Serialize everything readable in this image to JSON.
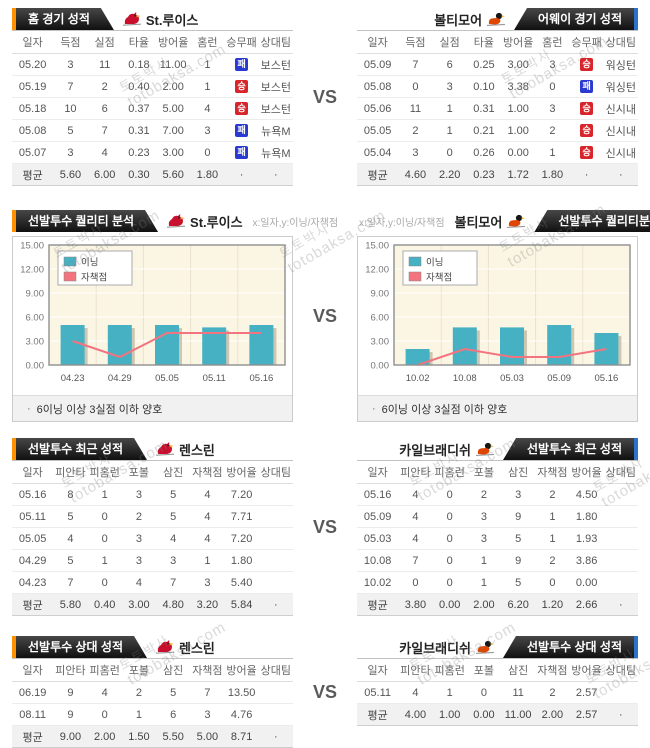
{
  "vs_label": "VS",
  "watermark": {
    "line1": "토토박사",
    "line2": "totobaksa.com"
  },
  "colors": {
    "tab_black": "#1d1d1d",
    "accent_orange": "#ff9000",
    "accent_blue": "#2e72c8",
    "badge_win_red": "#d8252b",
    "badge_loss_blue": "#2a3ad0",
    "bar_teal": "#46b1c2",
    "line_pink": "#f3747f",
    "plot_cream": "#fbf6e4"
  },
  "sections": [
    {
      "left": {
        "tab": "홈 경기 성적",
        "team": "St.루이스",
        "team_icon": "cardinal-icon",
        "table": {
          "columns": [
            "일자",
            "득점",
            "실점",
            "타율",
            "방어율",
            "홈런",
            "승무패",
            "상대팀"
          ],
          "rows": [
            [
              "05.20",
              "3",
              "11",
              "0.18",
              "11.00",
              "1",
              "패",
              "보스턴"
            ],
            [
              "05.19",
              "7",
              "2",
              "0.40",
              "2.00",
              "1",
              "승",
              "보스턴"
            ],
            [
              "05.18",
              "10",
              "6",
              "0.37",
              "5.00",
              "4",
              "승",
              "보스턴"
            ],
            [
              "05.08",
              "5",
              "7",
              "0.31",
              "7.00",
              "3",
              "패",
              "뉴욕M"
            ],
            [
              "05.07",
              "3",
              "4",
              "0.23",
              "3.00",
              "0",
              "패",
              "뉴욕M"
            ]
          ],
          "avg": [
            "평균",
            "5.60",
            "6.00",
            "0.30",
            "5.60",
            "1.80",
            "·",
            "·"
          ]
        }
      },
      "right": {
        "tab": "어웨이 경기 성적",
        "team": "볼티모어",
        "team_icon": "oriole-icon",
        "table": {
          "columns": [
            "일자",
            "득점",
            "실점",
            "타율",
            "방어율",
            "홈런",
            "승무패",
            "상대팀"
          ],
          "rows": [
            [
              "05.09",
              "7",
              "6",
              "0.25",
              "3.00",
              "3",
              "승",
              "워싱턴"
            ],
            [
              "05.08",
              "0",
              "3",
              "0.10",
              "3.38",
              "0",
              "패",
              "워싱턴"
            ],
            [
              "05.06",
              "11",
              "1",
              "0.31",
              "1.00",
              "3",
              "승",
              "신시내"
            ],
            [
              "05.05",
              "2",
              "1",
              "0.21",
              "1.00",
              "2",
              "승",
              "신시내"
            ],
            [
              "05.04",
              "3",
              "0",
              "0.26",
              "0.00",
              "1",
              "승",
              "신시내"
            ]
          ],
          "avg": [
            "평균",
            "4.60",
            "2.20",
            "0.23",
            "1.72",
            "1.80",
            "·",
            "·"
          ]
        }
      }
    },
    {
      "left": {
        "tab": "선발투수 퀄리티 분석",
        "team": "St.루이스",
        "team_icon": "cardinal-icon",
        "axis_note": "x:일자,y:이닝/자책점",
        "note_bullet": "·",
        "note": "6이닝 이상 3실점 이하 양호"
      },
      "right": {
        "tab": "선발투수 퀄리티분석",
        "team": "볼티모어",
        "team_icon": "oriole-icon",
        "axis_note": "x:일자,y:이닝/자책점",
        "note_bullet": "·",
        "note": "6이닝 이상 3실점 이하 양호"
      }
    },
    {
      "left": {
        "tab": "선발투수 최근 성적",
        "team": "렌스린",
        "team_icon": "cardinal-icon",
        "table": {
          "columns": [
            "일자",
            "피안타",
            "피홈런",
            "포볼",
            "삼진",
            "자책점",
            "방어율",
            "상대팀"
          ],
          "rows": [
            [
              "05.16",
              "8",
              "1",
              "3",
              "5",
              "4",
              "7.20",
              ""
            ],
            [
              "05.11",
              "5",
              "0",
              "2",
              "5",
              "4",
              "7.71",
              ""
            ],
            [
              "05.05",
              "4",
              "0",
              "3",
              "4",
              "4",
              "7.20",
              ""
            ],
            [
              "04.29",
              "5",
              "1",
              "3",
              "3",
              "1",
              "1.80",
              ""
            ],
            [
              "04.23",
              "7",
              "0",
              "4",
              "7",
              "3",
              "5.40",
              ""
            ]
          ],
          "avg": [
            "평균",
            "5.80",
            "0.40",
            "3.00",
            "4.80",
            "3.20",
            "5.84",
            "·"
          ]
        }
      },
      "right": {
        "tab": "선발투수 최근 성적",
        "team": "카일브래디쉬",
        "team_icon": "oriole-icon",
        "table": {
          "columns": [
            "일자",
            "피안타",
            "피홈런",
            "포볼",
            "삼진",
            "자책점",
            "방어율",
            "상대팀"
          ],
          "rows": [
            [
              "05.16",
              "4",
              "0",
              "2",
              "3",
              "2",
              "4.50",
              ""
            ],
            [
              "05.09",
              "4",
              "0",
              "3",
              "9",
              "1",
              "1.80",
              ""
            ],
            [
              "05.03",
              "4",
              "0",
              "3",
              "5",
              "1",
              "1.93",
              ""
            ],
            [
              "10.08",
              "7",
              "0",
              "1",
              "9",
              "2",
              "3.86",
              ""
            ],
            [
              "10.02",
              "0",
              "0",
              "1",
              "5",
              "0",
              "0.00",
              ""
            ]
          ],
          "avg": [
            "평균",
            "3.80",
            "0.00",
            "2.00",
            "6.20",
            "1.20",
            "2.66",
            "·"
          ]
        }
      }
    },
    {
      "left": {
        "tab": "선발투수 상대 성적",
        "team": "렌스린",
        "team_icon": "cardinal-icon",
        "table": {
          "columns": [
            "일자",
            "피안타",
            "피홈런",
            "포볼",
            "삼진",
            "자책점",
            "방어율",
            "상대팀"
          ],
          "rows": [
            [
              "06.19",
              "9",
              "4",
              "2",
              "5",
              "7",
              "13.50",
              ""
            ],
            [
              "08.11",
              "9",
              "0",
              "1",
              "6",
              "3",
              "4.76",
              ""
            ]
          ],
          "avg": [
            "평균",
            "9.00",
            "2.00",
            "1.50",
            "5.50",
            "5.00",
            "8.71",
            "·"
          ]
        }
      },
      "right": {
        "tab": "선발투수 상대 성적",
        "team": "카일브래디쉬",
        "team_icon": "oriole-icon",
        "table": {
          "columns": [
            "일자",
            "피안타",
            "피홈런",
            "포볼",
            "삼진",
            "자책점",
            "방어율",
            "상대팀"
          ],
          "rows": [
            [
              "05.11",
              "4",
              "1",
              "0",
              "11",
              "2",
              "2.57",
              ""
            ]
          ],
          "avg": [
            "평균",
            "4.00",
            "1.00",
            "0.00",
            "11.00",
            "2.00",
            "2.57",
            "·"
          ]
        }
      }
    }
  ],
  "chart_data": [
    {
      "type": "bar",
      "title": "St.루이스 선발투수 퀄리티 분석",
      "categories": [
        "04.23",
        "04.29",
        "05.05",
        "05.11",
        "05.16"
      ],
      "series": [
        {
          "name": "이닝",
          "kind": "bar",
          "color": "#46b1c2",
          "values": [
            5,
            5,
            5,
            4.7,
            5
          ]
        },
        {
          "name": "자책점",
          "kind": "line",
          "color": "#f3747f",
          "values": [
            3,
            1,
            4,
            4,
            4
          ]
        }
      ],
      "xlabel": "일자",
      "ylabel": "이닝/자책점",
      "ylim": [
        0,
        15
      ],
      "ytick_labels": [
        "0.00",
        "3.00",
        "6.00",
        "9.00",
        "12.00",
        "15.00"
      ],
      "grid": true,
      "legend_position": "top-left"
    },
    {
      "type": "bar",
      "title": "볼티모어 선발투수 퀄리티분석",
      "categories": [
        "10.02",
        "10.08",
        "05.03",
        "05.09",
        "05.16"
      ],
      "series": [
        {
          "name": "이닝",
          "kind": "bar",
          "color": "#46b1c2",
          "values": [
            2,
            4.7,
            4.7,
            5,
            4
          ]
        },
        {
          "name": "자책점",
          "kind": "line",
          "color": "#f3747f",
          "values": [
            0,
            2,
            1,
            1,
            2
          ]
        }
      ],
      "xlabel": "일자",
      "ylabel": "이닝/자책점",
      "ylim": [
        0,
        15
      ],
      "ytick_labels": [
        "0.00",
        "3.00",
        "6.00",
        "9.00",
        "12.00",
        "15.00"
      ],
      "grid": true,
      "legend_position": "top-left"
    }
  ]
}
